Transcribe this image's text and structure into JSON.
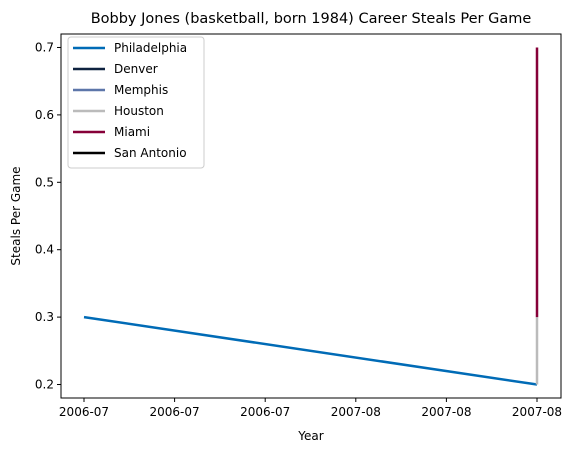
{
  "chart_data": {
    "type": "line",
    "title": "Bobby Jones (basketball, born 1984) Career Steals Per Game",
    "xlabel": "Year",
    "ylabel": "Steals Per Game",
    "x_ticks": [
      "2006-07",
      "2006-07",
      "2006-07",
      "2007-08",
      "2007-08",
      "2007-08"
    ],
    "y_ticks": [
      "0.2",
      "0.3",
      "0.4",
      "0.5",
      "0.6",
      "0.7"
    ],
    "ylim": [
      0.18,
      0.72
    ],
    "grid": false,
    "legend_position": "top-left",
    "series": [
      {
        "name": "Philadelphia",
        "color": "#006bb6",
        "points": [
          {
            "x": "2006-07",
            "y": 0.3
          },
          {
            "x": "2007-08",
            "y": 0.2
          }
        ]
      },
      {
        "name": "Denver",
        "color": "#0e2240",
        "points": [
          {
            "x": "2007-08",
            "y": 0.2
          }
        ]
      },
      {
        "name": "Memphis",
        "color": "#5d76a9",
        "points": [
          {
            "x": "2007-08",
            "y": 0.2
          }
        ]
      },
      {
        "name": "Houston",
        "color": "#bbbbbb",
        "points": [
          {
            "x": "2007-08",
            "y": 0.2
          },
          {
            "x": "2007-08",
            "y": 0.3
          }
        ]
      },
      {
        "name": "Miami",
        "color": "#860038",
        "points": [
          {
            "x": "2007-08",
            "y": 0.3
          },
          {
            "x": "2007-08",
            "y": 0.7
          }
        ]
      },
      {
        "name": "San Antonio",
        "color": "#000000",
        "points": [
          {
            "x": "2007-08",
            "y": 0.7
          }
        ]
      }
    ]
  }
}
